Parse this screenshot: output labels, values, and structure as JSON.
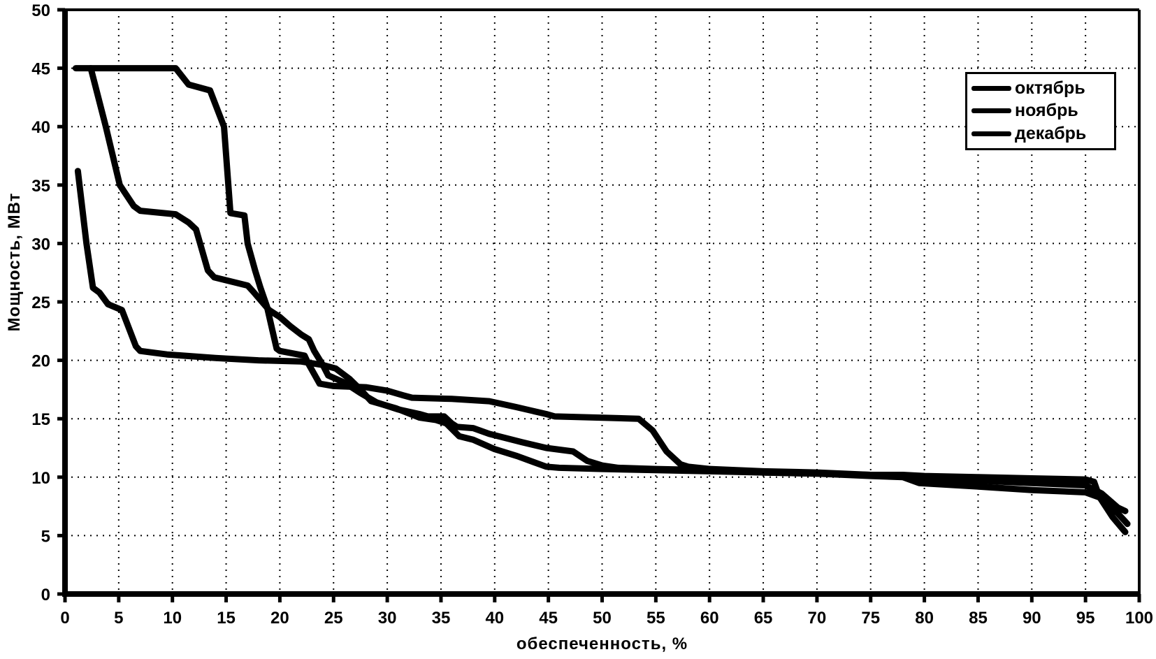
{
  "chart_data": {
    "type": "line",
    "title": "",
    "xlabel": "обеспеченность, %",
    "ylabel": "Мощность, МВт",
    "xlim": [
      0,
      100
    ],
    "ylim": [
      0,
      50
    ],
    "x_ticks": [
      0,
      5,
      10,
      15,
      20,
      25,
      30,
      35,
      40,
      45,
      50,
      55,
      60,
      65,
      70,
      75,
      80,
      85,
      90,
      95,
      100
    ],
    "y_ticks": [
      0,
      5,
      10,
      15,
      20,
      25,
      30,
      35,
      40,
      45,
      50
    ],
    "grid": "dotted",
    "legend_position": "top-right",
    "line_color": "#000000",
    "background": "#ffffff",
    "series": [
      {
        "name": "октябрь",
        "points": [
          [
            1.0,
            45.0
          ],
          [
            10.3,
            45.0
          ],
          [
            11.5,
            43.6
          ],
          [
            13.5,
            43.1
          ],
          [
            14.8,
            40.0
          ],
          [
            15.4,
            32.6
          ],
          [
            16.7,
            32.4
          ],
          [
            17.0,
            30.0
          ],
          [
            17.7,
            27.7
          ],
          [
            18.2,
            26.2
          ],
          [
            18.8,
            24.6
          ],
          [
            19.3,
            22.6
          ],
          [
            19.7,
            21.0
          ],
          [
            20.0,
            20.8
          ],
          [
            22.3,
            20.4
          ],
          [
            22.6,
            19.8
          ],
          [
            23.7,
            18.0
          ],
          [
            25.0,
            17.8
          ],
          [
            28.0,
            17.7
          ],
          [
            30.0,
            17.4
          ],
          [
            31.5,
            17.0
          ],
          [
            32.3,
            16.8
          ],
          [
            36.0,
            16.7
          ],
          [
            39.5,
            16.5
          ],
          [
            42.0,
            16.0
          ],
          [
            44.8,
            15.4
          ],
          [
            45.6,
            15.2
          ],
          [
            53.4,
            15.0
          ],
          [
            54.7,
            14.0
          ],
          [
            56.0,
            12.2
          ],
          [
            57.3,
            11.1
          ],
          [
            58.0,
            10.9
          ],
          [
            60.0,
            10.7
          ],
          [
            65.0,
            10.5
          ],
          [
            70.0,
            10.4
          ],
          [
            75.0,
            10.2
          ],
          [
            78.0,
            10.1
          ],
          [
            80.0,
            9.9
          ],
          [
            85.0,
            9.7
          ],
          [
            90.0,
            9.5
          ],
          [
            95.0,
            9.3
          ],
          [
            96.5,
            8.6
          ],
          [
            98.0,
            7.4
          ],
          [
            98.7,
            7.1
          ]
        ]
      },
      {
        "name": "ноябрь",
        "points": [
          [
            2.4,
            45.0
          ],
          [
            3.8,
            40.0
          ],
          [
            5.1,
            35.0
          ],
          [
            6.4,
            33.2
          ],
          [
            7.0,
            32.8
          ],
          [
            10.3,
            32.5
          ],
          [
            11.5,
            31.8
          ],
          [
            12.2,
            31.2
          ],
          [
            13.3,
            27.7
          ],
          [
            13.9,
            27.1
          ],
          [
            17.0,
            26.4
          ],
          [
            17.5,
            25.9
          ],
          [
            19.0,
            24.3
          ],
          [
            20.0,
            23.7
          ],
          [
            21.0,
            22.9
          ],
          [
            22.0,
            22.2
          ],
          [
            22.7,
            21.8
          ],
          [
            23.2,
            20.8
          ],
          [
            24.0,
            19.6
          ],
          [
            24.5,
            18.7
          ],
          [
            26.0,
            18.1
          ],
          [
            27.5,
            17.2
          ],
          [
            29.0,
            16.4
          ],
          [
            31.0,
            15.8
          ],
          [
            33.0,
            15.4
          ],
          [
            33.8,
            15.2
          ],
          [
            35.3,
            15.2
          ],
          [
            36.0,
            14.6
          ],
          [
            36.5,
            14.3
          ],
          [
            38.0,
            14.2
          ],
          [
            39.5,
            13.7
          ],
          [
            42.5,
            13.0
          ],
          [
            44.8,
            12.5
          ],
          [
            47.3,
            12.2
          ],
          [
            48.6,
            11.4
          ],
          [
            50.0,
            11.0
          ],
          [
            51.5,
            10.8
          ],
          [
            55.0,
            10.7
          ],
          [
            60.0,
            10.6
          ],
          [
            65.0,
            10.4
          ],
          [
            70.0,
            10.3
          ],
          [
            75.0,
            10.1
          ],
          [
            78.0,
            10.0
          ],
          [
            79.5,
            9.5
          ],
          [
            85.0,
            9.2
          ],
          [
            90.0,
            8.9
          ],
          [
            95.0,
            8.7
          ],
          [
            96.5,
            8.2
          ],
          [
            98.0,
            6.9
          ],
          [
            98.9,
            6.0
          ]
        ]
      },
      {
        "name": "декабрь",
        "points": [
          [
            1.2,
            36.2
          ],
          [
            2.0,
            30.0
          ],
          [
            2.6,
            26.2
          ],
          [
            3.2,
            25.8
          ],
          [
            4.0,
            24.8
          ],
          [
            5.3,
            24.3
          ],
          [
            6.6,
            21.2
          ],
          [
            7.0,
            20.8
          ],
          [
            9.5,
            20.5
          ],
          [
            14.0,
            20.2
          ],
          [
            18.0,
            20.0
          ],
          [
            22.0,
            19.9
          ],
          [
            24.0,
            19.6
          ],
          [
            25.2,
            19.3
          ],
          [
            26.5,
            18.4
          ],
          [
            27.5,
            17.5
          ],
          [
            28.5,
            16.5
          ],
          [
            30.8,
            15.9
          ],
          [
            33.0,
            15.1
          ],
          [
            34.5,
            14.9
          ],
          [
            35.5,
            14.6
          ],
          [
            36.7,
            13.5
          ],
          [
            38.0,
            13.2
          ],
          [
            40.0,
            12.4
          ],
          [
            42.1,
            11.8
          ],
          [
            44.8,
            10.9
          ],
          [
            46.0,
            10.8
          ],
          [
            50.0,
            10.7
          ],
          [
            55.0,
            10.6
          ],
          [
            60.0,
            10.5
          ],
          [
            65.0,
            10.4
          ],
          [
            70.0,
            10.3
          ],
          [
            75.0,
            10.2
          ],
          [
            78.0,
            10.2
          ],
          [
            80.0,
            10.1
          ],
          [
            85.0,
            10.0
          ],
          [
            90.0,
            9.9
          ],
          [
            95.0,
            9.8
          ],
          [
            95.8,
            9.6
          ],
          [
            96.3,
            8.3
          ],
          [
            97.5,
            6.6
          ],
          [
            98.7,
            5.3
          ]
        ]
      }
    ]
  }
}
